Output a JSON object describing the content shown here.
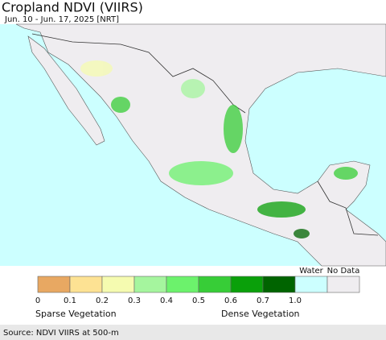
{
  "header": {
    "title": "Cropland NDVI (VIIRS)",
    "subtitle": "Jun. 10 - Jun. 17, 2025 [NRT]"
  },
  "legend": {
    "items": [
      {
        "color": "#e8a862"
      },
      {
        "color": "#fde293"
      },
      {
        "color": "#f5fbb0"
      },
      {
        "color": "#a5f59e"
      },
      {
        "color": "#6cf26c"
      },
      {
        "color": "#37cd37"
      },
      {
        "color": "#0aa00a"
      },
      {
        "color": "#006400"
      },
      {
        "label": "Water",
        "color": "#ccffff"
      },
      {
        "label": "No Data",
        "color": "#efedf0"
      }
    ],
    "ticks": [
      "0",
      "0.1",
      "0.2",
      "0.3",
      "0.4",
      "0.5",
      "0.6",
      "0.7",
      "1.0"
    ],
    "low_label": "Sparse Vegetation",
    "high_label": "Dense Vegetation"
  },
  "footer": {
    "source": "Source: NDVI VIIRS at 500-m"
  }
}
